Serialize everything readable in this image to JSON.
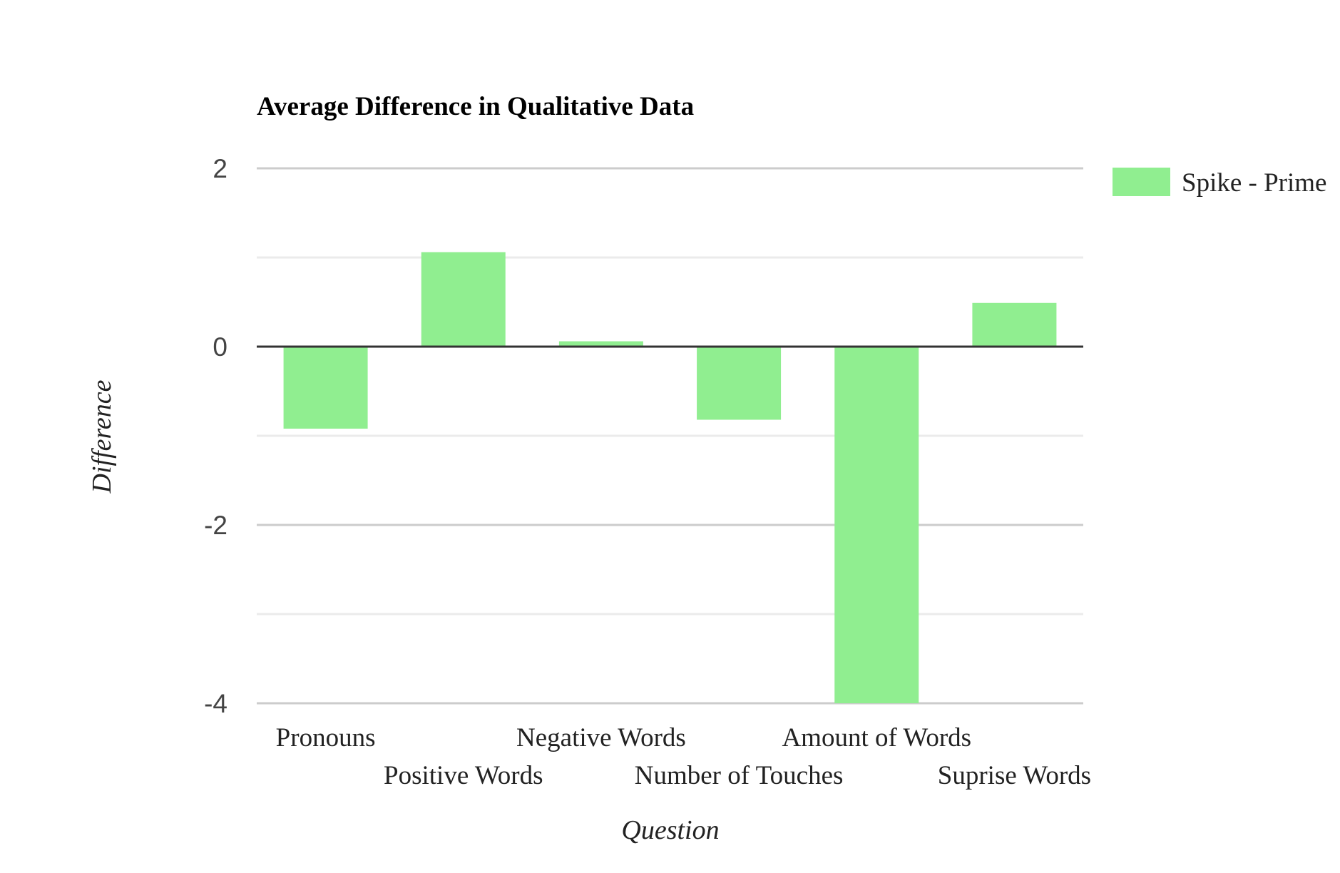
{
  "chart_data": {
    "type": "bar",
    "title": "Average Difference in Qualitative Data",
    "xlabel": "Question",
    "ylabel": "Difference",
    "categories": [
      "Pronouns",
      "Positive Words",
      "Negative Words",
      "Number of Touches",
      "Amount of Words",
      "Suprise Words"
    ],
    "series": [
      {
        "name": "Spike - Prime",
        "values": [
          -0.92,
          1.06,
          0.06,
          -0.82,
          -4.0,
          0.49
        ]
      }
    ],
    "ylim": [
      -4,
      2
    ],
    "yticks": [
      2,
      0,
      -2,
      -4
    ],
    "ytick_labels": [
      "2",
      "0",
      "-2",
      "-4"
    ],
    "grid": true,
    "legend_position": "right",
    "colors": {
      "bar": "#90ee90",
      "zero_line": "#333333",
      "major_grid": "#cccccc",
      "minor_grid": "#ebebeb",
      "tick_label": "#444444",
      "title": "#000000",
      "axis_label": "#222222"
    }
  }
}
